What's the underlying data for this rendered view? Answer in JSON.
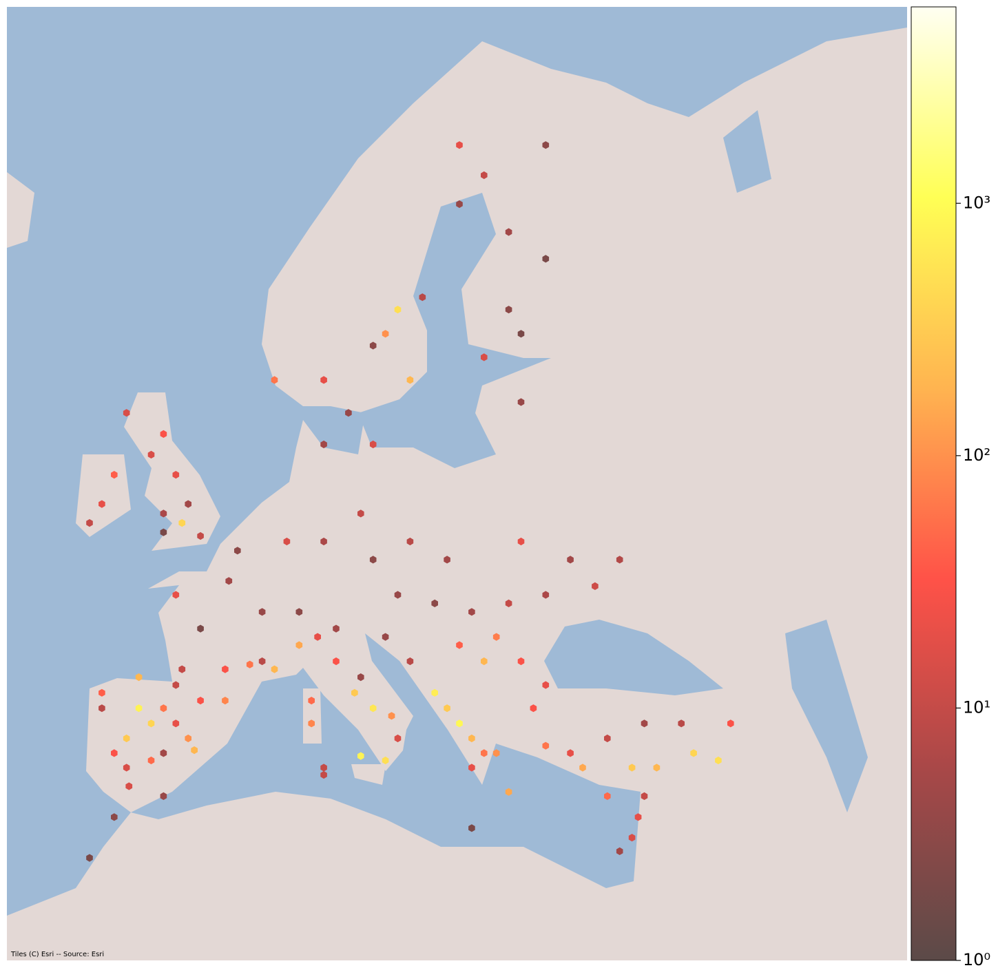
{
  "chart_data": {
    "type": "hexbin",
    "attribution": "Tiles (C) Esri -- Source: Esri",
    "log_scale": true,
    "clim": [
      1,
      6000
    ],
    "cticks": [
      {
        "value": 1,
        "label": "10⁰"
      },
      {
        "value": 10,
        "label": "10¹"
      },
      {
        "value": 100,
        "label": "10²"
      },
      {
        "value": 1000,
        "label": "10³"
      }
    ],
    "cmap": [
      "#5b4a48",
      "#a84848",
      "#ff5248",
      "#ffb450",
      "#ffff55",
      "#fffff2"
    ],
    "x": [
      -5,
      -4,
      -6,
      -3,
      -2,
      -7,
      -1,
      -4,
      -6,
      -8,
      -5,
      -2,
      0,
      2,
      -8,
      -3,
      -0.5,
      -1.5,
      2,
      4,
      5,
      6,
      0,
      2.3,
      3,
      5,
      -2,
      8,
      9.5,
      11,
      12.5,
      14,
      15.5,
      16,
      15,
      13,
      9,
      9,
      10,
      11,
      13,
      19,
      20,
      21,
      22,
      23,
      22,
      24,
      25,
      21,
      23,
      24,
      26,
      28,
      22,
      25,
      27,
      17,
      15,
      19,
      30,
      33,
      35,
      37,
      40,
      42,
      31,
      28,
      36,
      39,
      43,
      36,
      35.5,
      35,
      34,
      33,
      10,
      -5.8,
      -7,
      -9,
      22,
      -3,
      -3,
      -4,
      -2,
      -1,
      -1.5,
      -3,
      0,
      -7,
      -8,
      -9,
      -6,
      -3,
      6,
      10,
      12,
      14,
      16,
      15,
      18,
      17,
      14,
      21,
      23,
      25,
      25,
      23,
      26,
      26,
      28,
      10,
      21,
      28,
      7,
      10,
      13,
      17,
      14,
      20,
      26,
      30,
      34,
      28,
      32,
      16,
      8
    ],
    "y": [
      41,
      40,
      39,
      41,
      40,
      38,
      39,
      37.5,
      37,
      42,
      43,
      42.5,
      41.5,
      41.5,
      41,
      38,
      38.2,
      43.5,
      43.5,
      43.8,
      44,
      43.5,
      46,
      48.8,
      50.5,
      47,
      48,
      45,
      45.5,
      44,
      42,
      41,
      40.5,
      39,
      37.5,
      37.8,
      40,
      41.5,
      37,
      46,
      43,
      42,
      41,
      40,
      39,
      38,
      37,
      38,
      35.3,
      45,
      44,
      45.5,
      44,
      42.5,
      47,
      47.5,
      41,
      44,
      45.5,
      47.5,
      38,
      39,
      37,
      37,
      38,
      37.5,
      37,
      38.5,
      40,
      40,
      40,
      35,
      33.5,
      32,
      31,
      35,
      36.5,
      35.7,
      33.5,
      30.5,
      32.7,
      35,
      56.5,
      55.5,
      54.5,
      53,
      52,
      51.5,
      51.3,
      54.5,
      53,
      52,
      57.5,
      52.5,
      59,
      59,
      57.5,
      60.5,
      62,
      61,
      62.5,
      59,
      56,
      68,
      67,
      65,
      62,
      60,
      58,
      61,
      64,
      56,
      66,
      68,
      51,
      51,
      52.5,
      51,
      50,
      50,
      51,
      50,
      50,
      48,
      48.5,
      48,
      47
    ],
    "values": [
      800,
      400,
      300,
      60,
      20,
      30,
      100,
      50,
      15,
      40,
      200,
      10,
      30,
      80,
      8,
      5,
      200,
      10,
      30,
      60,
      8,
      200,
      2,
      5,
      3,
      4,
      20,
      150,
      20,
      30,
      300,
      600,
      100,
      15,
      500,
      800,
      80,
      50,
      10,
      5,
      4,
      700,
      300,
      900,
      200,
      60,
      20,
      100,
      150,
      40,
      200,
      70,
      30,
      20,
      5,
      10,
      30,
      8,
      4,
      3,
      20,
      10,
      300,
      200,
      400,
      500,
      150,
      60,
      5,
      8,
      30,
      10,
      20,
      15,
      5,
      50,
      10,
      15,
      3,
      2,
      2,
      4,
      30,
      15,
      20,
      5,
      400,
      2,
      10,
      40,
      20,
      10,
      15,
      6,
      60,
      20,
      4,
      3,
      500,
      100,
      8,
      200,
      15,
      20,
      10,
      5,
      3,
      15,
      4,
      2,
      2,
      5,
      4,
      3,
      15,
      6,
      10,
      8,
      3,
      5,
      20,
      5,
      7,
      6,
      12,
      4,
      3
    ]
  }
}
